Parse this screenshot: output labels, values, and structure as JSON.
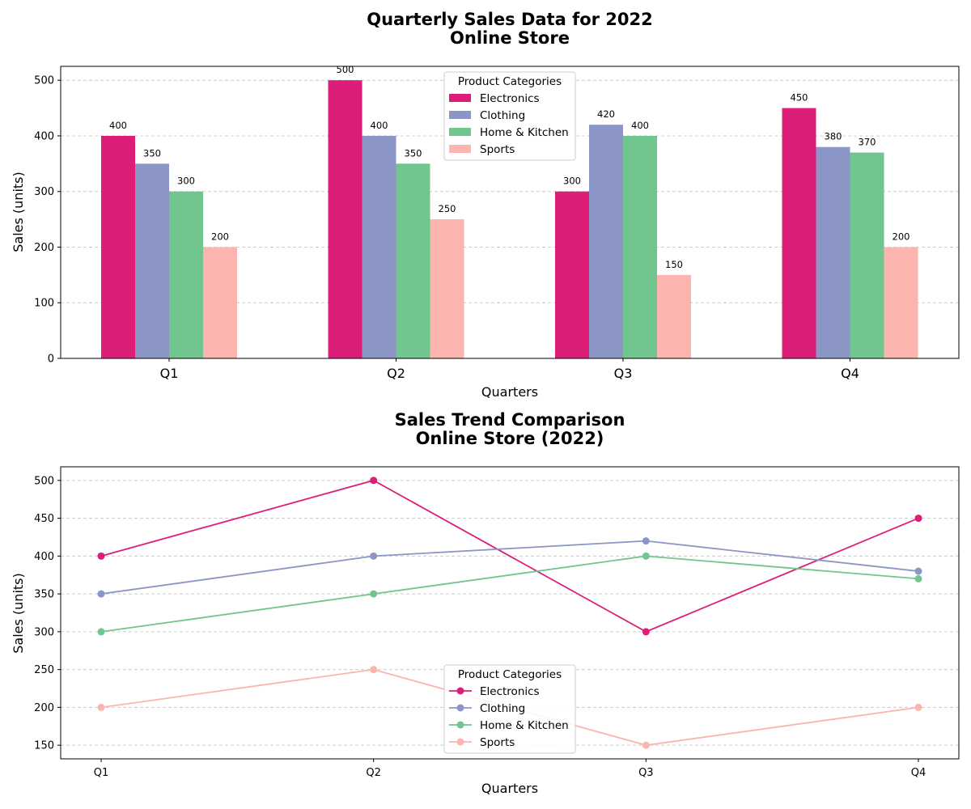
{
  "chart_data": [
    {
      "type": "bar",
      "title": "Quarterly Sales Data for 2022",
      "subtitle": "Online Store",
      "xlabel": "Quarters",
      "ylabel": "Sales (units)",
      "categories": [
        "Q1",
        "Q2",
        "Q3",
        "Q4"
      ],
      "ylim": [
        0,
        525
      ],
      "yticks": [
        0,
        100,
        200,
        300,
        400,
        500
      ],
      "grid": "y-dashed",
      "legend_title": "Product Categories",
      "legend_position": "upper-center",
      "series": [
        {
          "name": "Electronics",
          "color": "#dc1e78",
          "values": [
            400,
            500,
            300,
            450
          ]
        },
        {
          "name": "Clothing",
          "color": "#8c96c6",
          "values": [
            350,
            400,
            420,
            380
          ]
        },
        {
          "name": "Home & Kitchen",
          "color": "#71c58e",
          "values": [
            300,
            350,
            400,
            370
          ]
        },
        {
          "name": "Sports",
          "color": "#fbb4ae",
          "values": [
            200,
            250,
            150,
            200
          ]
        }
      ]
    },
    {
      "type": "line",
      "title": "Sales Trend Comparison",
      "subtitle": "Online Store (2022)",
      "xlabel": "Quarters",
      "ylabel": "Sales (units)",
      "categories": [
        "Q1",
        "Q2",
        "Q3",
        "Q4"
      ],
      "ylim": [
        132,
        518
      ],
      "yticks": [
        150,
        200,
        250,
        300,
        350,
        400,
        450,
        500
      ],
      "grid": "y-dashed",
      "legend_title": "Product Categories",
      "legend_position": "lower-center",
      "series": [
        {
          "name": "Electronics",
          "color": "#dc1e78",
          "values": [
            400,
            500,
            300,
            450
          ]
        },
        {
          "name": "Clothing",
          "color": "#8c96c6",
          "values": [
            350,
            400,
            420,
            380
          ]
        },
        {
          "name": "Home & Kitchen",
          "color": "#71c58e",
          "values": [
            300,
            350,
            400,
            370
          ]
        },
        {
          "name": "Sports",
          "color": "#fbb4ae",
          "values": [
            200,
            250,
            150,
            200
          ]
        }
      ]
    }
  ]
}
